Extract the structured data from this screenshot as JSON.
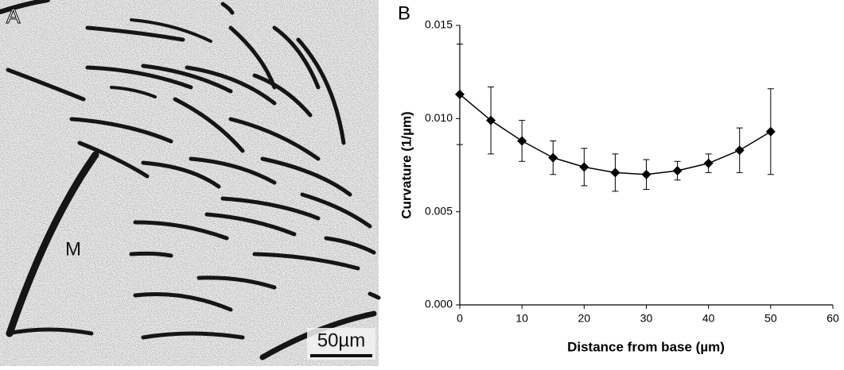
{
  "image": {
    "panel_label": "A",
    "annotation": "M",
    "scale_bar": "50µm"
  },
  "chart_data": {
    "type": "line",
    "panel_label": "B",
    "x_label": "Distance from base (µm)",
    "y_label": "Curvature (1/µm)",
    "x": [
      0,
      5,
      10,
      15,
      20,
      25,
      30,
      35,
      40,
      45,
      50
    ],
    "series": [
      {
        "color": "#000000",
        "values": [
          0.0113,
          0.0099,
          0.0088,
          0.0079,
          0.0074,
          0.0071,
          0.007,
          0.0072,
          0.0076,
          0.0083,
          0.0093
        ],
        "errors": [
          0.0027,
          0.0018,
          0.0011,
          0.0009,
          0.001,
          0.001,
          0.0008,
          0.0005,
          0.0005,
          0.0012,
          0.0023
        ]
      }
    ],
    "xlim": [
      0,
      60
    ],
    "xticks": [
      0,
      10,
      20,
      30,
      40,
      50,
      60
    ],
    "ylim": [
      0,
      0.015
    ],
    "yticks": [
      {
        "value": 0,
        "label": "0.000"
      },
      {
        "value": 0.005,
        "label": "0.005"
      },
      {
        "value": 0.01,
        "label": "0.010"
      },
      {
        "value": 0.015,
        "label": "0.015"
      }
    ]
  }
}
